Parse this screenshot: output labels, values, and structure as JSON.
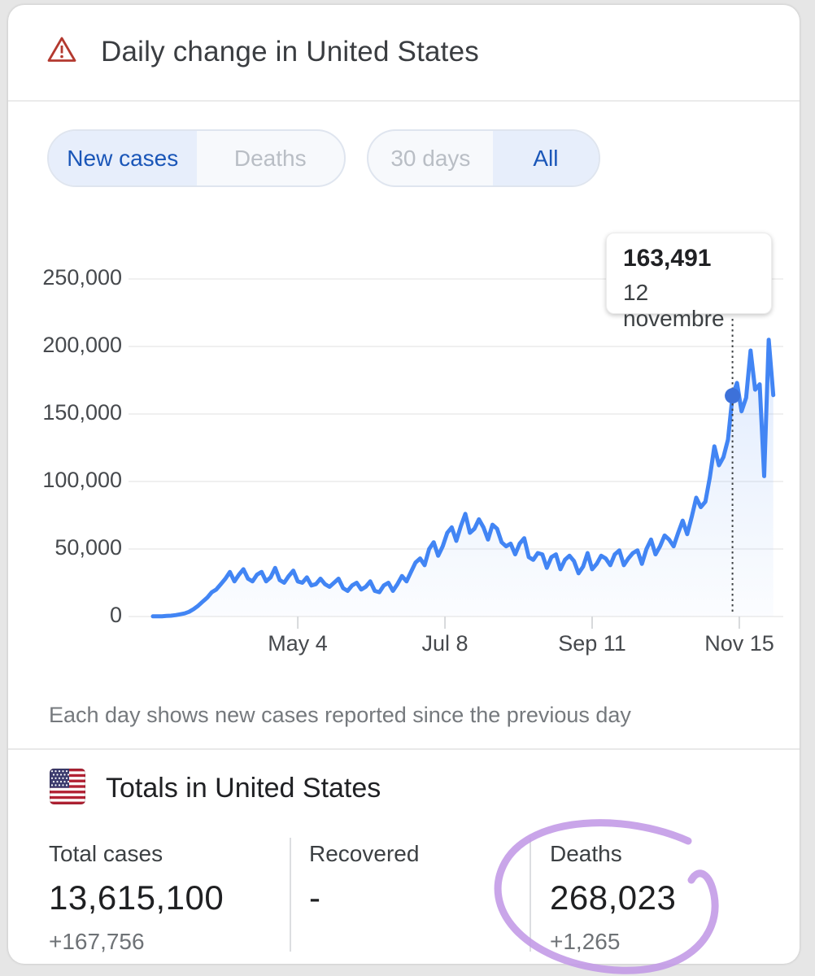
{
  "header": {
    "title": "Daily change in United States",
    "warning_icon": "warning-triangle-icon",
    "warning_color": "#b3392f"
  },
  "toggles": {
    "metric": [
      {
        "label": "New cases",
        "active": true
      },
      {
        "label": "Deaths",
        "active": false
      }
    ],
    "range": [
      {
        "label": "30 days",
        "active": false
      },
      {
        "label": "All",
        "active": true
      }
    ],
    "active_text_color": "#1a56b8",
    "active_bg_color": "#e7eefb",
    "inactive_text_color": "#b9bec5"
  },
  "tooltip": {
    "value": "163,491",
    "date": "12 novembre"
  },
  "chart_data": {
    "type": "line",
    "series_name": "New cases per day",
    "title": "Daily change in United States",
    "ylim": [
      0,
      250000
    ],
    "grid": true,
    "line_color": "#4285f4",
    "highlight_dot_color": "#3d71d9",
    "y_ticks": [
      "250,000",
      "200,000",
      "150,000",
      "100,000",
      "50,000",
      "0"
    ],
    "y_tick_values": [
      250000,
      200000,
      150000,
      100000,
      50000,
      0
    ],
    "x_ticks": [
      {
        "label": "May 4",
        "day": 64
      },
      {
        "label": "Jul 8",
        "day": 129
      },
      {
        "label": "Sep 11",
        "day": 194
      },
      {
        "label": "Nov 15",
        "day": 259
      }
    ],
    "day_step": 2,
    "values_thousands": [
      0.1,
      0.1,
      0.2,
      0.4,
      0.6,
      1,
      1.6,
      2.3,
      3.5,
      5.5,
      8,
      11,
      14,
      18,
      20,
      24,
      28,
      33,
      26,
      31,
      35,
      28,
      26,
      31,
      33,
      26,
      29,
      36,
      27,
      25,
      30,
      34,
      26,
      25,
      29,
      23,
      24,
      28,
      24,
      22,
      25,
      28,
      21,
      19,
      23,
      25,
      20,
      22,
      26,
      19,
      18,
      23,
      25,
      19,
      24,
      30,
      26,
      33,
      40,
      43,
      38,
      50,
      55,
      45,
      52,
      62,
      66,
      56,
      67,
      76,
      62,
      65,
      72,
      66,
      57,
      68,
      65,
      55,
      52,
      54,
      46,
      54,
      58,
      44,
      42,
      47,
      46,
      36,
      44,
      46,
      35,
      42,
      45,
      41,
      32,
      37,
      47,
      35,
      39,
      45,
      43,
      38,
      46,
      49,
      38,
      43,
      47,
      49,
      39,
      50,
      57,
      46,
      52,
      60,
      57,
      52,
      62,
      71,
      61,
      74,
      88,
      81,
      85,
      103,
      126,
      112,
      118,
      131,
      163.491,
      173,
      152,
      162,
      197,
      168,
      172,
      104,
      205,
      164
    ],
    "highlight": {
      "index": 128,
      "value": 163.491,
      "label": "163,491",
      "date_label": "12 novembre"
    }
  },
  "caption": "Each day shows new cases reported since the previous day",
  "totals": {
    "title": "Totals in United States",
    "flag_icon": "us-flag-icon",
    "stats": [
      {
        "label": "Total cases",
        "value": "13,615,100",
        "delta": "+167,756"
      },
      {
        "label": "Recovered",
        "value": "-",
        "delta": ""
      },
      {
        "label": "Deaths",
        "value": "268,023",
        "delta": "+1,265"
      }
    ]
  },
  "annotation": {
    "shape": "hand-drawn-circle",
    "target": "Deaths total",
    "color": "#c299e6"
  }
}
